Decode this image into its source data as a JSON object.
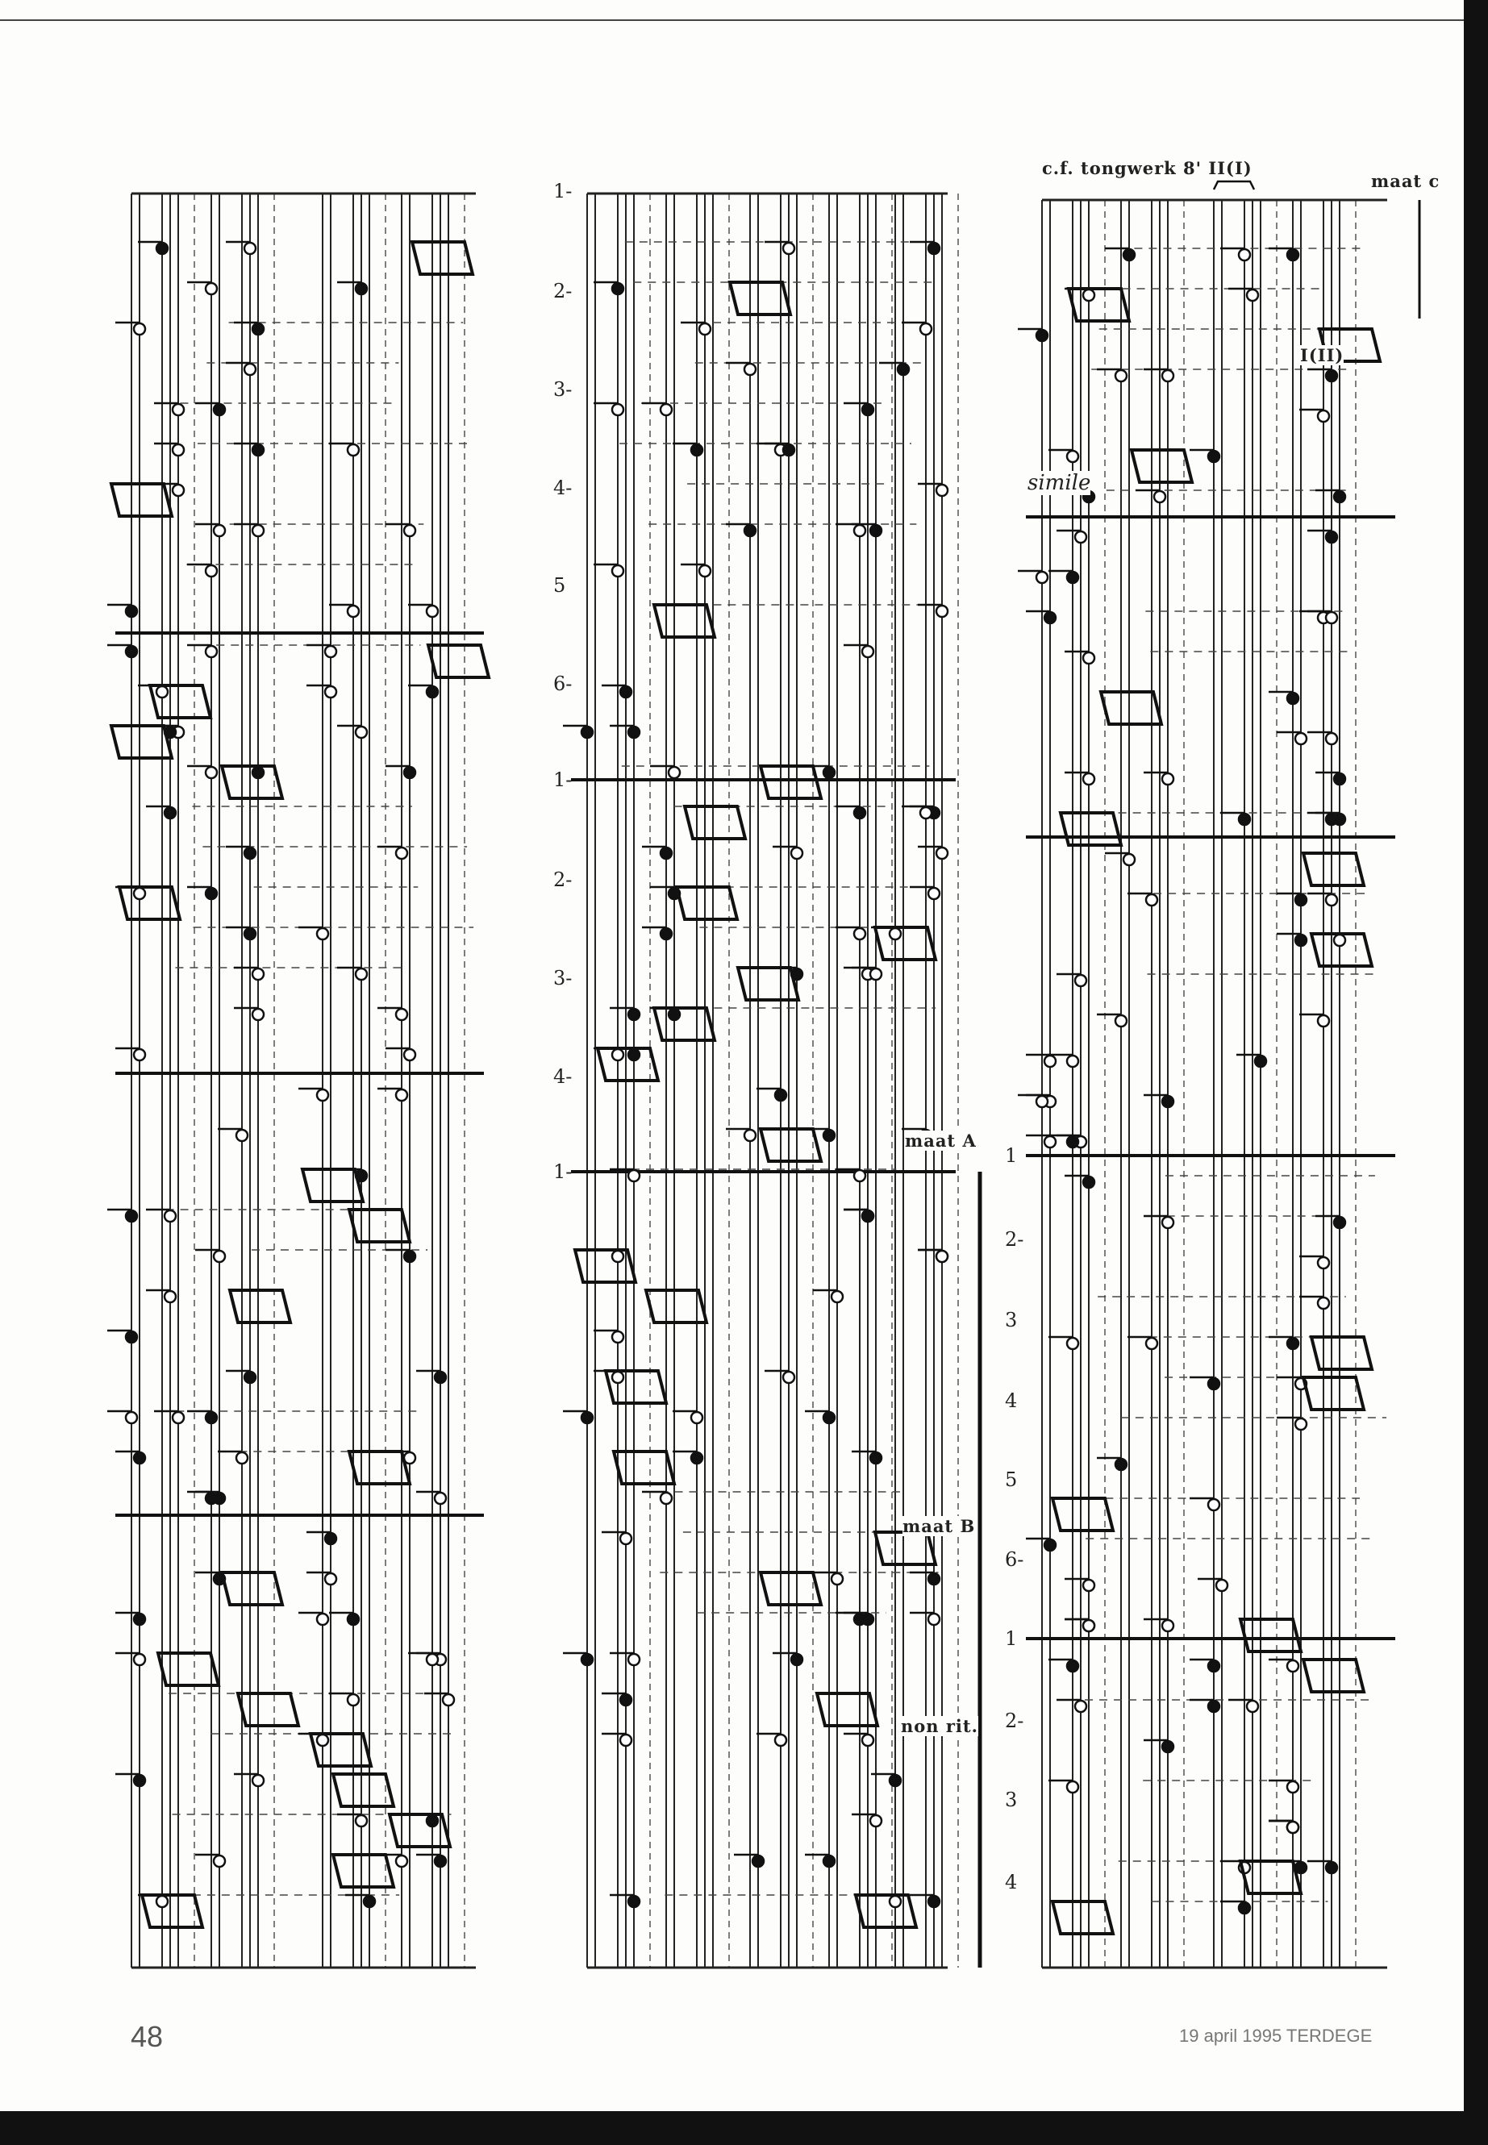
{
  "header": {
    "registration": "c.f. tongwerk 8' II(I)",
    "measure_c": "maat c"
  },
  "annotations": {
    "manual_swap": "I(II)",
    "simile": "simile",
    "measure_a": "maat A",
    "measure_b": "maat B",
    "non_rit": "non rit."
  },
  "column2_beats": [
    "1-",
    "2-",
    "3-",
    "4-",
    "5",
    "6-",
    "1-",
    "2-",
    "3-",
    "4-",
    "1-"
  ],
  "column3_beats": [
    "1",
    "2-",
    "3",
    "4",
    "5",
    "6-",
    "1",
    "2-",
    "3",
    "4"
  ],
  "footer": {
    "page_number": "48",
    "date_publication": "19 april 1995 TERDEGE"
  }
}
